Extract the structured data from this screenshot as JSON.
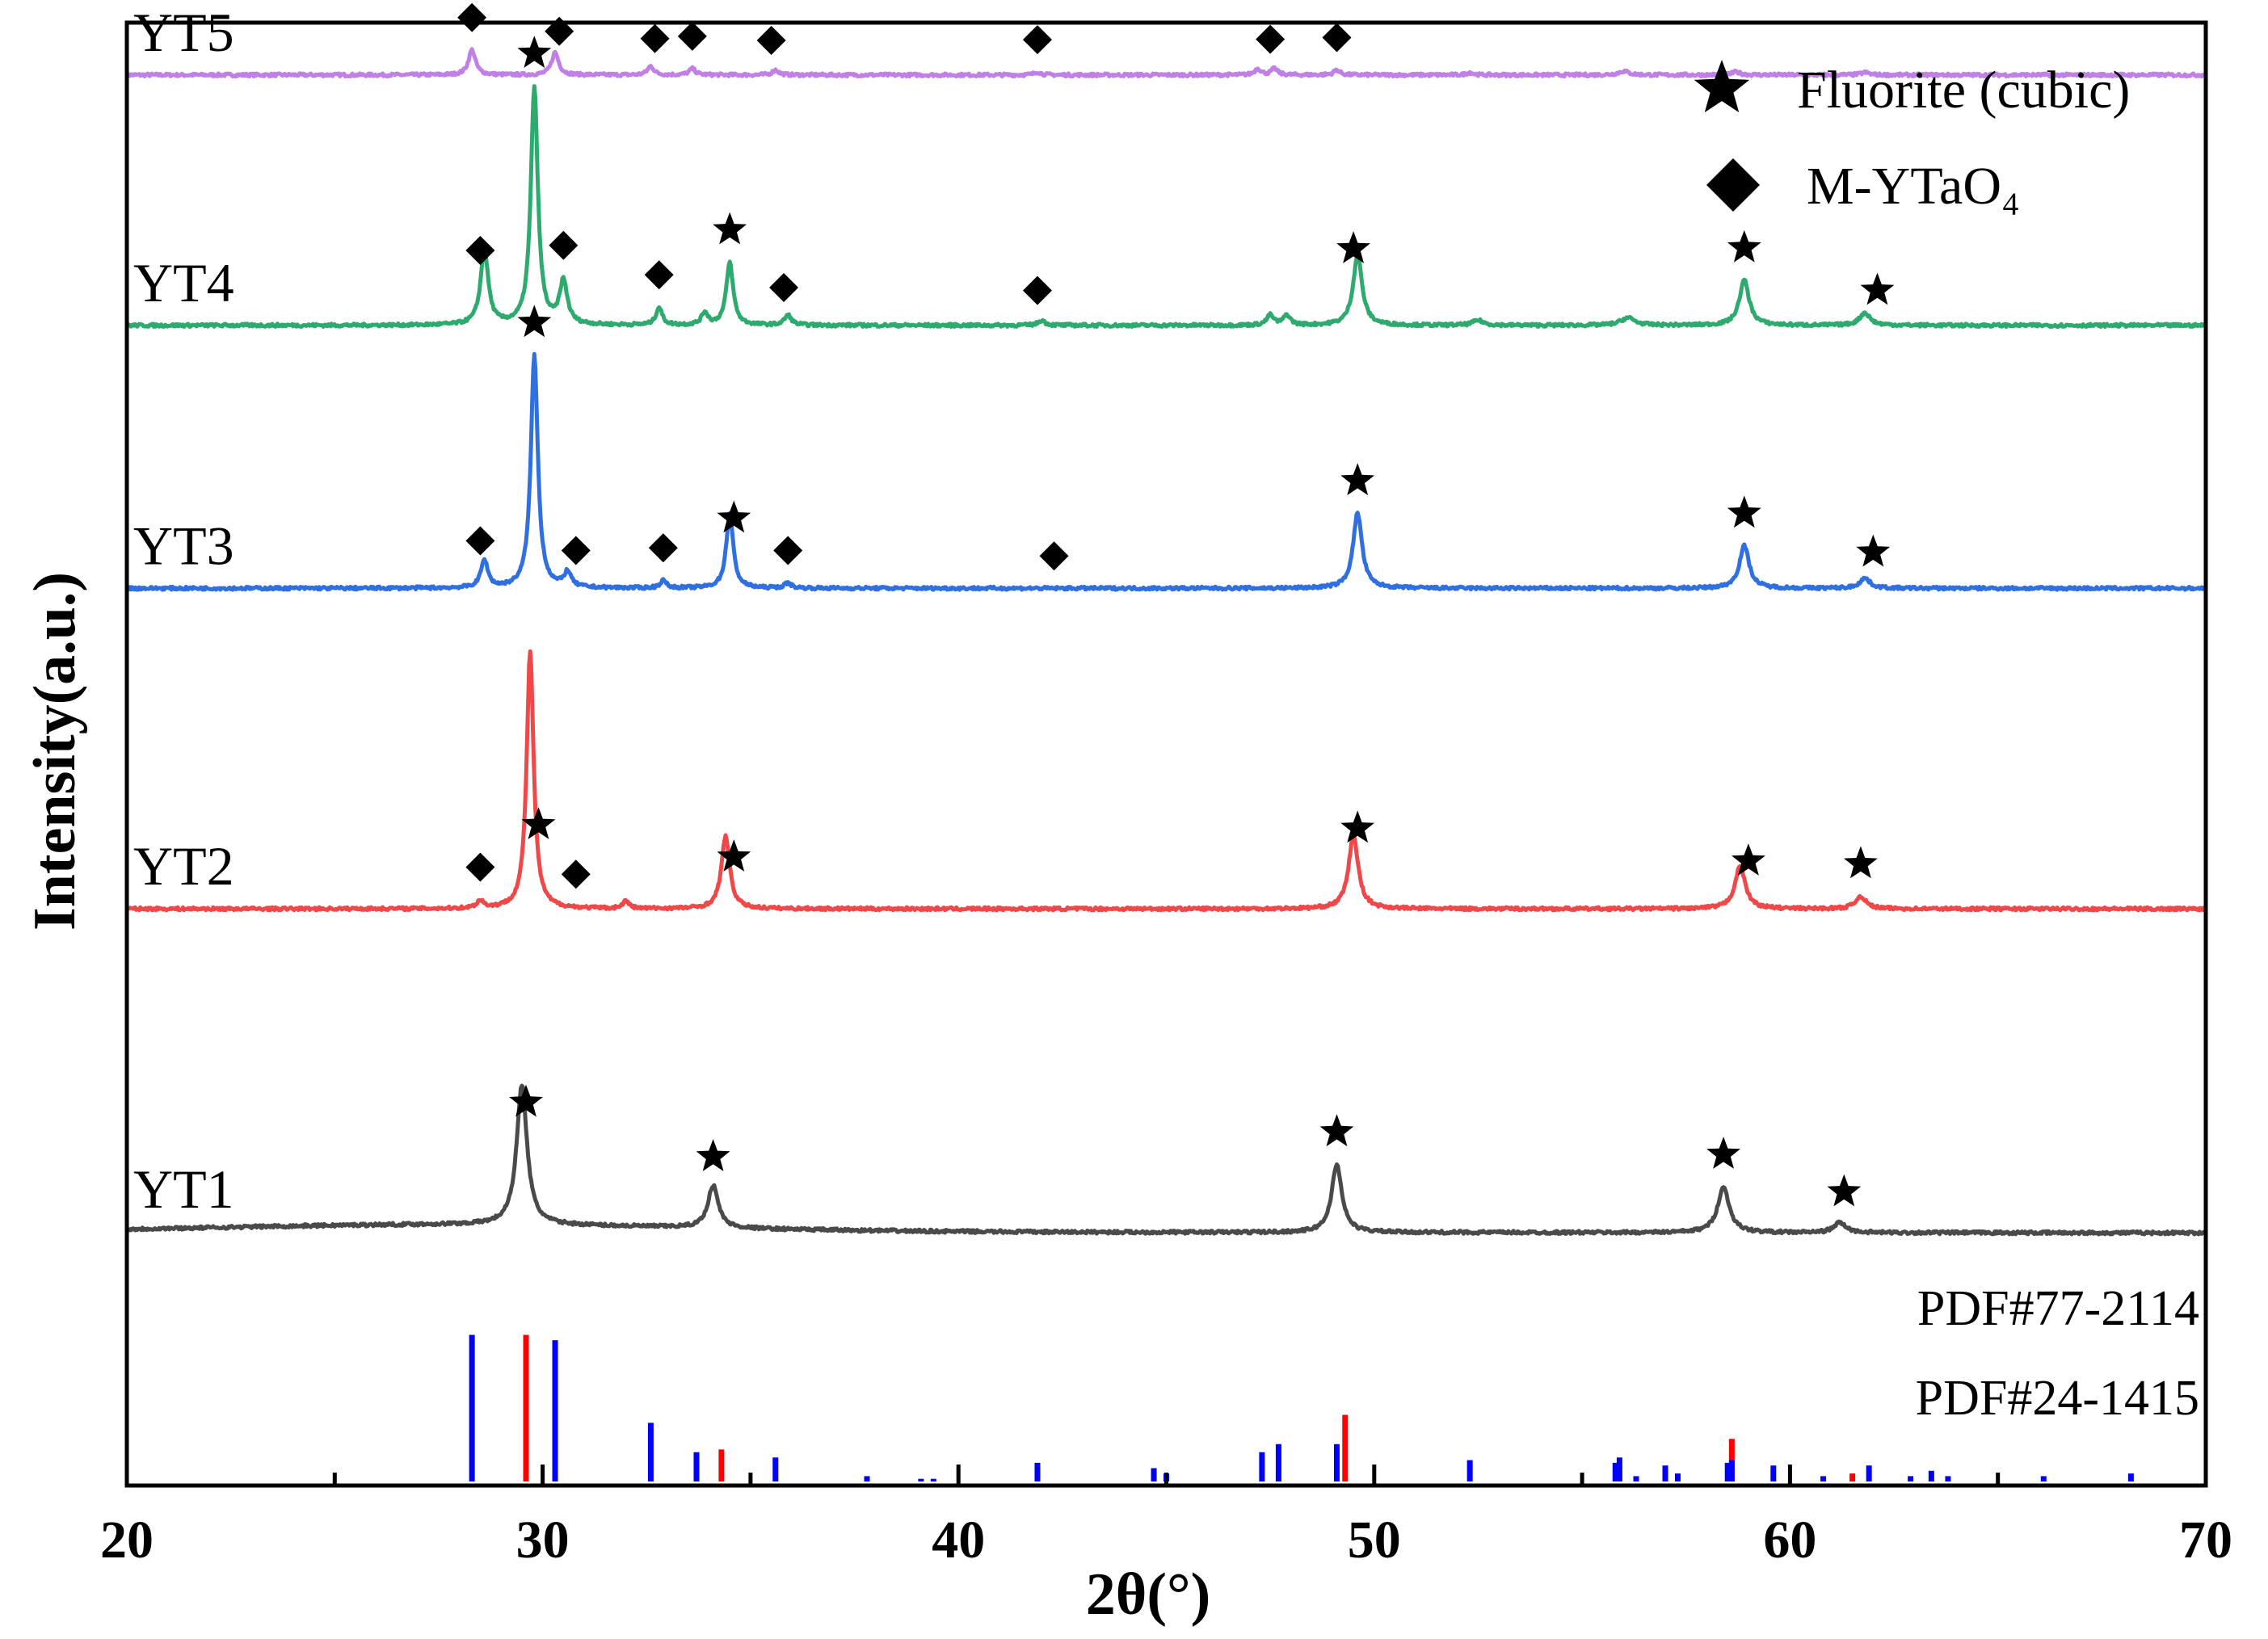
{
  "chart_data": {
    "type": "line",
    "xlabel": "2θ(°)",
    "ylabel": "Intensity(a.u.)",
    "xlim": [
      20,
      70
    ],
    "xticks": [
      "20",
      "30",
      "40",
      "50",
      "60",
      "70"
    ],
    "xtick_values": [
      20,
      30,
      40,
      50,
      60,
      70
    ],
    "legend": [
      {
        "symbol": "star",
        "label": "Fluorite (cubic)"
      },
      {
        "symbol": "diamond",
        "label": "M-YTaO₄"
      }
    ],
    "series": [
      {
        "name": "YT5",
        "color": "#c080e6",
        "offset": 4.6,
        "base": 0.02,
        "peaks": [
          [
            28.3,
            0.1,
            0.1
          ],
          [
            30.3,
            0.09,
            0.1
          ],
          [
            32.6,
            0.035,
            0.09
          ],
          [
            33.6,
            0.025,
            0.09
          ],
          [
            35.6,
            0.02,
            0.09
          ],
          [
            41.9,
            0.012,
            0.09
          ],
          [
            47.2,
            0.025,
            0.09
          ],
          [
            47.6,
            0.025,
            0.09
          ],
          [
            49.1,
            0.02,
            0.09
          ],
          [
            52.3,
            0.01,
            0.09
          ],
          [
            56.0,
            0.015,
            0.15
          ],
          [
            58.7,
            0.012,
            0.12
          ],
          [
            61.8,
            0.01,
            0.12
          ]
        ],
        "markers": [
          {
            "x": 28.3,
            "symbol": "diamond"
          },
          {
            "x": 30.4,
            "symbol": "diamond"
          },
          {
            "x": 32.7,
            "symbol": "diamond"
          },
          {
            "x": 33.6,
            "symbol": "diamond"
          },
          {
            "x": 35.5,
            "symbol": "diamond"
          },
          {
            "x": 41.9,
            "symbol": "diamond"
          },
          {
            "x": 47.5,
            "symbol": "diamond"
          },
          {
            "x": 49.1,
            "symbol": "diamond"
          }
        ]
      },
      {
        "name": "YT4",
        "color": "#2eaa6e",
        "offset": 3.6,
        "base": 0.02,
        "peaks": [
          [
            28.6,
            0.3,
            0.11
          ],
          [
            29.8,
            0.95,
            0.1
          ],
          [
            30.5,
            0.17,
            0.11
          ],
          [
            32.8,
            0.07,
            0.09
          ],
          [
            33.9,
            0.05,
            0.09
          ],
          [
            34.5,
            0.25,
            0.1
          ],
          [
            35.9,
            0.04,
            0.1
          ],
          [
            42.0,
            0.02,
            0.1
          ],
          [
            47.5,
            0.04,
            0.1
          ],
          [
            47.9,
            0.04,
            0.1
          ],
          [
            49.6,
            0.28,
            0.13
          ],
          [
            52.5,
            0.02,
            0.15
          ],
          [
            56.1,
            0.03,
            0.2
          ],
          [
            58.9,
            0.18,
            0.14
          ],
          [
            61.8,
            0.05,
            0.15
          ]
        ],
        "markers": [
          {
            "x": 28.5,
            "symbol": "diamond"
          },
          {
            "x": 29.8,
            "symbol": "star"
          },
          {
            "x": 30.5,
            "symbol": "diamond"
          },
          {
            "x": 32.8,
            "symbol": "diamond"
          },
          {
            "x": 34.5,
            "symbol": "star"
          },
          {
            "x": 35.8,
            "symbol": "diamond"
          },
          {
            "x": 41.9,
            "symbol": "diamond"
          },
          {
            "x": 49.5,
            "symbol": "star"
          },
          {
            "x": 58.9,
            "symbol": "star"
          },
          {
            "x": 62.1,
            "symbol": "star"
          }
        ]
      },
      {
        "name": "YT3",
        "color": "#2f6fe0",
        "offset": 2.55,
        "base": 0.02,
        "peaks": [
          [
            28.6,
            0.11,
            0.1
          ],
          [
            29.8,
            0.93,
            0.1
          ],
          [
            30.6,
            0.06,
            0.1
          ],
          [
            32.9,
            0.03,
            0.09
          ],
          [
            34.5,
            0.3,
            0.1
          ],
          [
            35.9,
            0.02,
            0.1
          ],
          [
            49.6,
            0.3,
            0.13
          ],
          [
            58.9,
            0.17,
            0.14
          ],
          [
            61.8,
            0.04,
            0.15
          ]
        ],
        "markers": [
          {
            "x": 28.5,
            "symbol": "diamond"
          },
          {
            "x": 29.8,
            "symbol": "star"
          },
          {
            "x": 30.8,
            "symbol": "diamond"
          },
          {
            "x": 32.9,
            "symbol": "diamond"
          },
          {
            "x": 34.6,
            "symbol": "star"
          },
          {
            "x": 35.9,
            "symbol": "diamond"
          },
          {
            "x": 42.3,
            "symbol": "diamond"
          },
          {
            "x": 49.6,
            "symbol": "star"
          },
          {
            "x": 58.9,
            "symbol": "star"
          },
          {
            "x": 62.0,
            "symbol": "star"
          }
        ]
      },
      {
        "name": "YT2",
        "color": "#f04848",
        "offset": 1.27,
        "base": 0.02,
        "peaks": [
          [
            28.5,
            0.03,
            0.1
          ],
          [
            29.7,
            1.03,
            0.1
          ],
          [
            32.0,
            0.03,
            0.09
          ],
          [
            34.4,
            0.29,
            0.12
          ],
          [
            49.5,
            0.29,
            0.14
          ],
          [
            58.8,
            0.17,
            0.15
          ],
          [
            61.7,
            0.05,
            0.15
          ]
        ],
        "markers": [
          {
            "x": 28.5,
            "symbol": "diamond"
          },
          {
            "x": 29.9,
            "symbol": "star"
          },
          {
            "x": 30.8,
            "symbol": "diamond"
          },
          {
            "x": 34.6,
            "symbol": "star"
          },
          {
            "x": 49.6,
            "symbol": "star"
          },
          {
            "x": 59.0,
            "symbol": "star"
          },
          {
            "x": 61.7,
            "symbol": "star"
          }
        ]
      },
      {
        "name": "YT1",
        "color": "#4a4a4a",
        "offset": 0.0,
        "base": 0.0,
        "peaks": [
          [
            29.5,
            0.56,
            0.15
          ],
          [
            34.1,
            0.17,
            0.15
          ],
          [
            49.1,
            0.27,
            0.15
          ],
          [
            58.4,
            0.18,
            0.17
          ],
          [
            61.2,
            0.04,
            0.17
          ]
        ],
        "markers": [
          {
            "x": 29.6,
            "symbol": "star"
          },
          {
            "x": 34.1,
            "symbol": "star"
          },
          {
            "x": 49.1,
            "symbol": "star"
          },
          {
            "x": 58.4,
            "symbol": "star"
          },
          {
            "x": 61.3,
            "symbol": "star"
          }
        ]
      }
    ],
    "reference_patterns": [
      {
        "name": "PDF#77-2114",
        "color": "#ff0000",
        "lines": [
          [
            29.6,
            0.55
          ],
          [
            34.3,
            0.12
          ],
          [
            49.3,
            0.25
          ],
          [
            58.6,
            0.16
          ],
          [
            61.5,
            0.03
          ]
        ]
      },
      {
        "name": "PDF#24-1415",
        "color": "#0000ff",
        "lines": [
          [
            28.3,
            0.55
          ],
          [
            30.3,
            0.53
          ],
          [
            32.6,
            0.22
          ],
          [
            33.7,
            0.11
          ],
          [
            35.6,
            0.09
          ],
          [
            37.8,
            0.02
          ],
          [
            39.1,
            0.01
          ],
          [
            39.4,
            0.01
          ],
          [
            41.9,
            0.07
          ],
          [
            44.7,
            0.05
          ],
          [
            45.0,
            0.03
          ],
          [
            47.3,
            0.11
          ],
          [
            47.7,
            0.14
          ],
          [
            49.1,
            0.14
          ],
          [
            52.3,
            0.08
          ],
          [
            55.8,
            0.07
          ],
          [
            55.9,
            0.09
          ],
          [
            56.3,
            0.02
          ],
          [
            57.0,
            0.06
          ],
          [
            57.3,
            0.03
          ],
          [
            58.5,
            0.07
          ],
          [
            58.6,
            0.08
          ],
          [
            59.6,
            0.06
          ],
          [
            60.8,
            0.02
          ],
          [
            61.9,
            0.06
          ],
          [
            62.9,
            0.02
          ],
          [
            63.4,
            0.04
          ],
          [
            63.8,
            0.02
          ],
          [
            66.1,
            0.02
          ],
          [
            68.2,
            0.03
          ]
        ]
      }
    ]
  }
}
